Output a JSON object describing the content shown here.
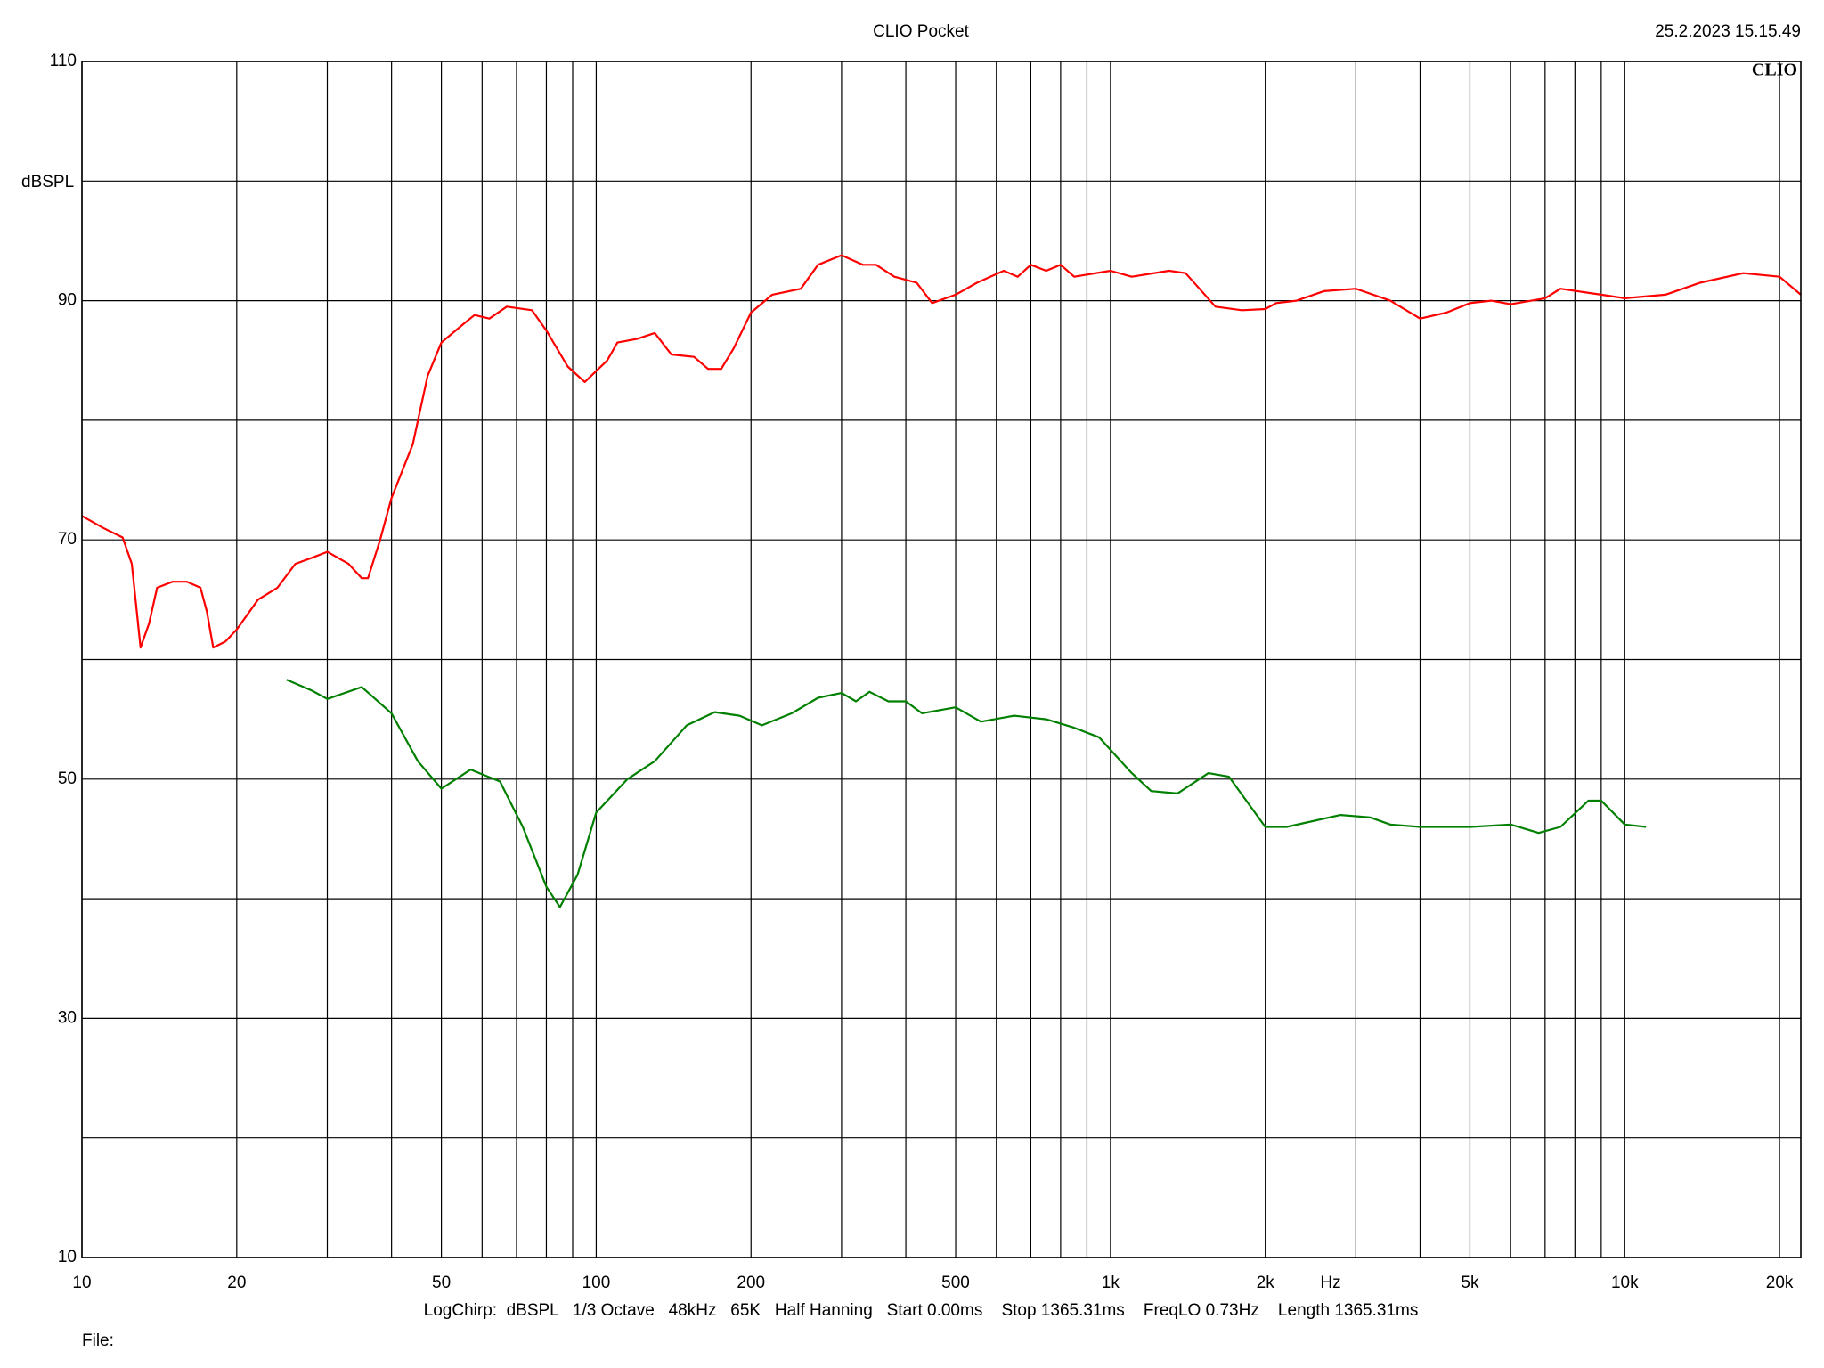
{
  "chart_data": {
    "type": "line",
    "title": "CLIO Pocket",
    "timestamp": "25.2.2023 15.15.49",
    "logo": "CLIO",
    "y_label": "dBSPL",
    "x_label": "Hz",
    "settings": "LogChirp:  dBSPL   1/3 Octave   48kHz   65K   Half Hanning   Start 0.00ms    Stop 1365.31ms    FreqLO 0.73Hz    Length 1365.31ms",
    "file_label": "File:",
    "log_x": true,
    "grid": true,
    "xlim": [
      10,
      22000
    ],
    "ylim": [
      10,
      110
    ],
    "xticks": [
      10,
      20,
      50,
      100,
      200,
      500,
      {
        "value": 1000,
        "label": "1k"
      },
      {
        "value": 2000,
        "label": "2k"
      },
      {
        "value": 5000,
        "label": "5k"
      },
      {
        "value": 10000,
        "label": "10k"
      },
      {
        "value": 20000,
        "label": "20k"
      }
    ],
    "xminor": [
      30,
      40,
      60,
      70,
      80,
      90,
      300,
      400,
      600,
      700,
      800,
      900,
      3000,
      4000,
      6000,
      7000,
      8000,
      9000
    ],
    "yticks": [
      10,
      30,
      50,
      70,
      90,
      110
    ],
    "yminor": [
      20,
      40,
      60,
      80,
      100
    ],
    "series": [
      {
        "color": "#ff0000",
        "x": [
          10,
          11,
          12,
          12.5,
          13,
          13.5,
          14,
          15,
          16,
          17,
          17.5,
          18,
          19,
          20,
          22,
          24,
          26,
          28,
          30,
          33,
          35,
          36,
          38,
          40,
          44,
          47,
          50,
          55,
          58,
          62,
          67,
          75,
          80,
          88,
          95,
          105,
          110,
          120,
          130,
          140,
          155,
          165,
          175,
          185,
          200,
          220,
          250,
          270,
          300,
          330,
          350,
          380,
          420,
          450,
          500,
          550,
          620,
          660,
          700,
          750,
          800,
          850,
          1000,
          1100,
          1300,
          1400,
          1600,
          1800,
          2000,
          2100,
          2300,
          2600,
          3000,
          3500,
          4000,
          4500,
          5000,
          5500,
          6000,
          7000,
          7500,
          9000,
          10000,
          12000,
          14000,
          17000,
          20000,
          22000
        ],
        "values": [
          72,
          71,
          70.2,
          68,
          61,
          63,
          66,
          66.5,
          66.5,
          66,
          64,
          61,
          61.5,
          62.5,
          65,
          66,
          68,
          68.5,
          69,
          68,
          66.8,
          66.8,
          70,
          73.5,
          78,
          83.7,
          86.5,
          88,
          88.8,
          88.5,
          89.5,
          89.2,
          87.5,
          84.5,
          83.2,
          85,
          86.5,
          86.8,
          87.3,
          85.5,
          85.3,
          84.3,
          84.3,
          86,
          89,
          90.5,
          91,
          93,
          93.8,
          93,
          93,
          92,
          91.5,
          89.8,
          90.5,
          91.5,
          92.5,
          92,
          93,
          92.5,
          93,
          92,
          92.5,
          92,
          92.5,
          92.3,
          89.5,
          89.2,
          89.3,
          89.8,
          90,
          90.8,
          91,
          90,
          88.5,
          89,
          89.8,
          90,
          89.7,
          90.2,
          91,
          90.5,
          90.2,
          90.5,
          91.5,
          92.3,
          92,
          90.5
        ]
      },
      {
        "color": "#008000",
        "x": [
          25,
          28,
          30,
          35,
          40,
          45,
          50,
          57,
          65,
          72,
          80,
          85,
          92,
          100,
          115,
          130,
          150,
          170,
          190,
          210,
          240,
          270,
          300,
          320,
          340,
          370,
          400,
          430,
          500,
          560,
          650,
          750,
          850,
          950,
          1100,
          1200,
          1350,
          1550,
          1700,
          2000,
          2200,
          2800,
          3200,
          3500,
          4000,
          5000,
          6000,
          6800,
          7500,
          8500,
          9000,
          10000,
          11000
        ],
        "values": [
          58.3,
          57.4,
          56.7,
          57.7,
          55.5,
          51.5,
          49.2,
          50.8,
          49.8,
          46,
          41,
          39.3,
          42,
          47.2,
          50,
          51.5,
          54.5,
          55.6,
          55.3,
          54.5,
          55.5,
          56.8,
          57.2,
          56.5,
          57.3,
          56.5,
          56.5,
          55.5,
          56,
          54.8,
          55.3,
          55,
          54.3,
          53.5,
          50.5,
          49,
          48.8,
          50.5,
          50.2,
          46,
          46,
          47,
          46.8,
          46.2,
          46,
          46,
          46.2,
          45.5,
          46,
          48.2,
          48.2,
          46.2,
          46
        ]
      }
    ]
  }
}
